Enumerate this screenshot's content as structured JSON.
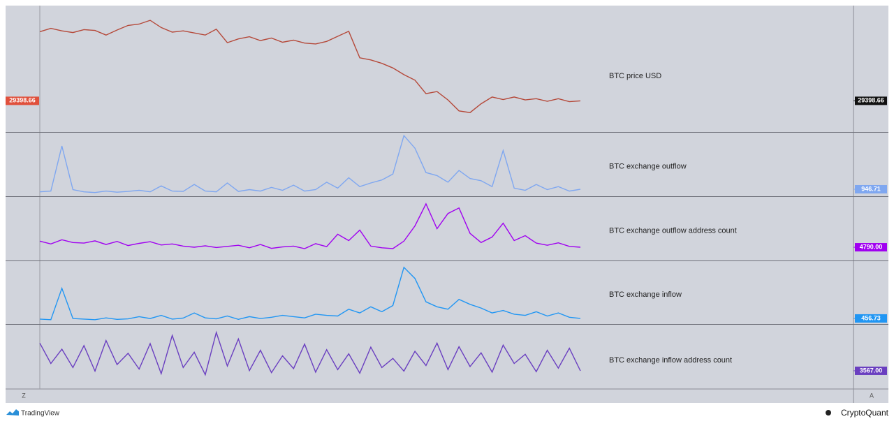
{
  "chart_data": [
    {
      "type": "line",
      "title": "BTC price USD",
      "color": "#b5493a",
      "badge_color": "#111111",
      "left_badge_color": "#e0503c",
      "ylim": [
        22000,
        52000
      ],
      "values": [
        45800,
        46600,
        46000,
        45600,
        46300,
        46100,
        45000,
        46200,
        47300,
        47600,
        48500,
        46800,
        45700,
        46000,
        45500,
        45000,
        46400,
        43200,
        44100,
        44600,
        43700,
        44300,
        43300,
        43800,
        43100,
        42900,
        43500,
        44700,
        45900,
        39600,
        39100,
        38300,
        37200,
        35600,
        34300,
        31100,
        31600,
        29600,
        27000,
        26600,
        28700,
        30300,
        29700,
        30300,
        29600,
        29900,
        29300,
        29900,
        29200,
        29398.66
      ],
      "value_labels": [
        null,
        null,
        null,
        null,
        null,
        null,
        null,
        null,
        null,
        null,
        null,
        null,
        null,
        null,
        null,
        null,
        null,
        null,
        null,
        null,
        null,
        null,
        null,
        null,
        null,
        null,
        null,
        null,
        null,
        null,
        null,
        null,
        null,
        null,
        null,
        null,
        null,
        null,
        null,
        null,
        null,
        null,
        null,
        null,
        null,
        null,
        null,
        null,
        null,
        "29398.66"
      ]
    },
    {
      "type": "line",
      "title": "BTC exchange outflow",
      "color": "#7fa7f0",
      "badge_color": "#7fa7f0",
      "ylim": [
        0,
        8600
      ],
      "values": [
        600,
        700,
        6800,
        900,
        600,
        500,
        700,
        550,
        650,
        800,
        600,
        1400,
        700,
        650,
        1600,
        700,
        600,
        1800,
        650,
        900,
        700,
        1200,
        800,
        1500,
        700,
        900,
        1900,
        1100,
        2500,
        1300,
        1800,
        2200,
        3000,
        8200,
        6500,
        3200,
        2800,
        1900,
        3500,
        2400,
        2100,
        1300,
        6200,
        1100,
        800,
        1600,
        900,
        1300,
        700,
        946.71
      ],
      "value_labels": [
        null,
        null,
        null,
        null,
        null,
        null,
        null,
        null,
        null,
        null,
        null,
        null,
        null,
        null,
        null,
        null,
        null,
        null,
        null,
        null,
        null,
        null,
        null,
        null,
        null,
        null,
        null,
        null,
        null,
        null,
        null,
        null,
        null,
        null,
        null,
        null,
        null,
        null,
        null,
        null,
        null,
        null,
        null,
        null,
        null,
        null,
        null,
        null,
        null,
        "946.71"
      ]
    },
    {
      "type": "line",
      "title": "BTC exchange outflow address count",
      "color": "#a000f0",
      "badge_color": "#a000f0",
      "ylim": [
        0,
        23000
      ],
      "values": [
        7000,
        6000,
        7500,
        6500,
        6300,
        7100,
        5800,
        6900,
        5400,
        6200,
        6800,
        5600,
        6000,
        5200,
        4800,
        5300,
        4700,
        5100,
        5500,
        4600,
        5800,
        4400,
        4900,
        5200,
        4300,
        6100,
        5000,
        9500,
        7200,
        11000,
        5200,
        4600,
        4300,
        7000,
        12500,
        20500,
        11500,
        17000,
        19000,
        9800,
        6500,
        8500,
        13500,
        7200,
        9000,
        6300,
        5500,
        6400,
        5100,
        4790
      ],
      "value_labels": [
        null,
        null,
        null,
        null,
        null,
        null,
        null,
        null,
        null,
        null,
        null,
        null,
        null,
        null,
        null,
        null,
        null,
        null,
        null,
        null,
        null,
        null,
        null,
        null,
        null,
        null,
        null,
        null,
        null,
        null,
        null,
        null,
        null,
        null,
        null,
        null,
        null,
        null,
        null,
        null,
        null,
        null,
        null,
        null,
        null,
        null,
        null,
        null,
        null,
        "4790.00"
      ]
    },
    {
      "type": "line",
      "title": "BTC exchange inflow",
      "color": "#2196f3",
      "badge_color": "#2196f3",
      "ylim": [
        0,
        5100
      ],
      "values": [
        400,
        350,
        2900,
        450,
        400,
        350,
        500,
        380,
        420,
        600,
        450,
        700,
        400,
        480,
        900,
        500,
        420,
        650,
        380,
        600,
        450,
        550,
        700,
        600,
        500,
        800,
        700,
        650,
        1200,
        900,
        1400,
        1000,
        1500,
        4600,
        3700,
        1800,
        1400,
        1200,
        2000,
        1600,
        1300,
        900,
        1100,
        800,
        700,
        1000,
        650,
        900,
        550,
        456.73
      ],
      "value_labels": [
        null,
        null,
        null,
        null,
        null,
        null,
        null,
        null,
        null,
        null,
        null,
        null,
        null,
        null,
        null,
        null,
        null,
        null,
        null,
        null,
        null,
        null,
        null,
        null,
        null,
        null,
        null,
        null,
        null,
        null,
        null,
        null,
        null,
        null,
        null,
        null,
        null,
        null,
        null,
        null,
        null,
        null,
        null,
        null,
        null,
        null,
        null,
        null,
        null,
        "456.73"
      ]
    },
    {
      "type": "line",
      "title": "BTC exchange inflow address count",
      "color": "#6a3fc0",
      "badge_color": "#6a3fc0",
      "ylim": [
        0,
        12600
      ],
      "values": [
        9000,
        5000,
        7800,
        4200,
        8500,
        3500,
        9500,
        4800,
        7000,
        3900,
        8900,
        3000,
        10500,
        4200,
        7200,
        2800,
        11100,
        4500,
        9800,
        3600,
        7600,
        3200,
        6500,
        4000,
        8800,
        3300,
        7700,
        3800,
        6900,
        3100,
        8200,
        4200,
        6000,
        3500,
        7400,
        4600,
        9000,
        3800,
        8300,
        4400,
        7100,
        3300,
        8600,
        5000,
        6800,
        3400,
        7600,
        4100,
        8000,
        3567
      ],
      "value_labels": [
        null,
        null,
        null,
        null,
        null,
        null,
        null,
        null,
        null,
        null,
        null,
        null,
        null,
        null,
        null,
        null,
        null,
        null,
        null,
        null,
        null,
        null,
        null,
        null,
        null,
        null,
        null,
        null,
        null,
        null,
        null,
        null,
        null,
        null,
        null,
        null,
        null,
        null,
        null,
        null,
        null,
        null,
        null,
        null,
        null,
        null,
        null,
        null,
        null,
        "3567.00"
      ]
    }
  ],
  "axis_buttons": {
    "left": "Z",
    "right": "A"
  },
  "footer": {
    "left": "TradingView",
    "right": "CryptoQuant"
  }
}
